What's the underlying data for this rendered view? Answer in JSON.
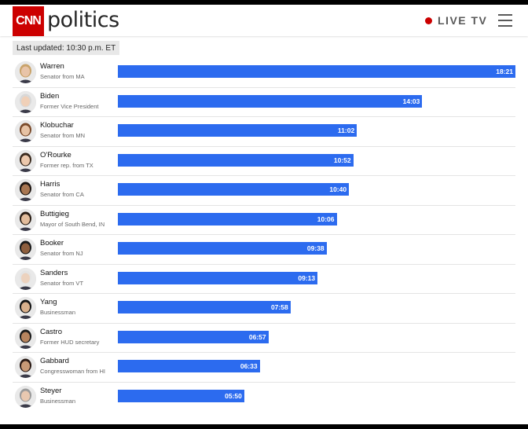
{
  "header": {
    "logo_mark": "CNN",
    "logo_text": "politics",
    "live_label": "LIVE TV"
  },
  "last_updated": "Last updated: 10:30 p.m. ET",
  "colors": {
    "brand_red": "#cc0000",
    "bar_blue": "#2c6bef"
  },
  "chart_data": {
    "type": "bar",
    "orientation": "horizontal",
    "unit": "minutes:seconds",
    "max_value_seconds": 1101,
    "candidates": [
      {
        "name": "Warren",
        "role": "Senator from MA",
        "time": "18:21",
        "seconds": 1101
      },
      {
        "name": "Biden",
        "role": "Former Vice President",
        "time": "14:03",
        "seconds": 843
      },
      {
        "name": "Klobuchar",
        "role": "Senator from MN",
        "time": "11:02",
        "seconds": 662
      },
      {
        "name": "O'Rourke",
        "role": "Former rep. from TX",
        "time": "10:52",
        "seconds": 652
      },
      {
        "name": "Harris",
        "role": "Senator from CA",
        "time": "10:40",
        "seconds": 640
      },
      {
        "name": "Buttigieg",
        "role": "Mayor of South Bend, IN",
        "time": "10:06",
        "seconds": 606
      },
      {
        "name": "Booker",
        "role": "Senator from NJ",
        "time": "09:38",
        "seconds": 578
      },
      {
        "name": "Sanders",
        "role": "Senator from VT",
        "time": "09:13",
        "seconds": 553
      },
      {
        "name": "Yang",
        "role": "Businessman",
        "time": "07:58",
        "seconds": 478
      },
      {
        "name": "Castro",
        "role": "Former HUD secretary",
        "time": "06:57",
        "seconds": 417
      },
      {
        "name": "Gabbard",
        "role": "Congresswoman from HI",
        "time": "06:33",
        "seconds": 393
      },
      {
        "name": "Steyer",
        "role": "Businessman",
        "time": "05:50",
        "seconds": 350
      }
    ]
  }
}
